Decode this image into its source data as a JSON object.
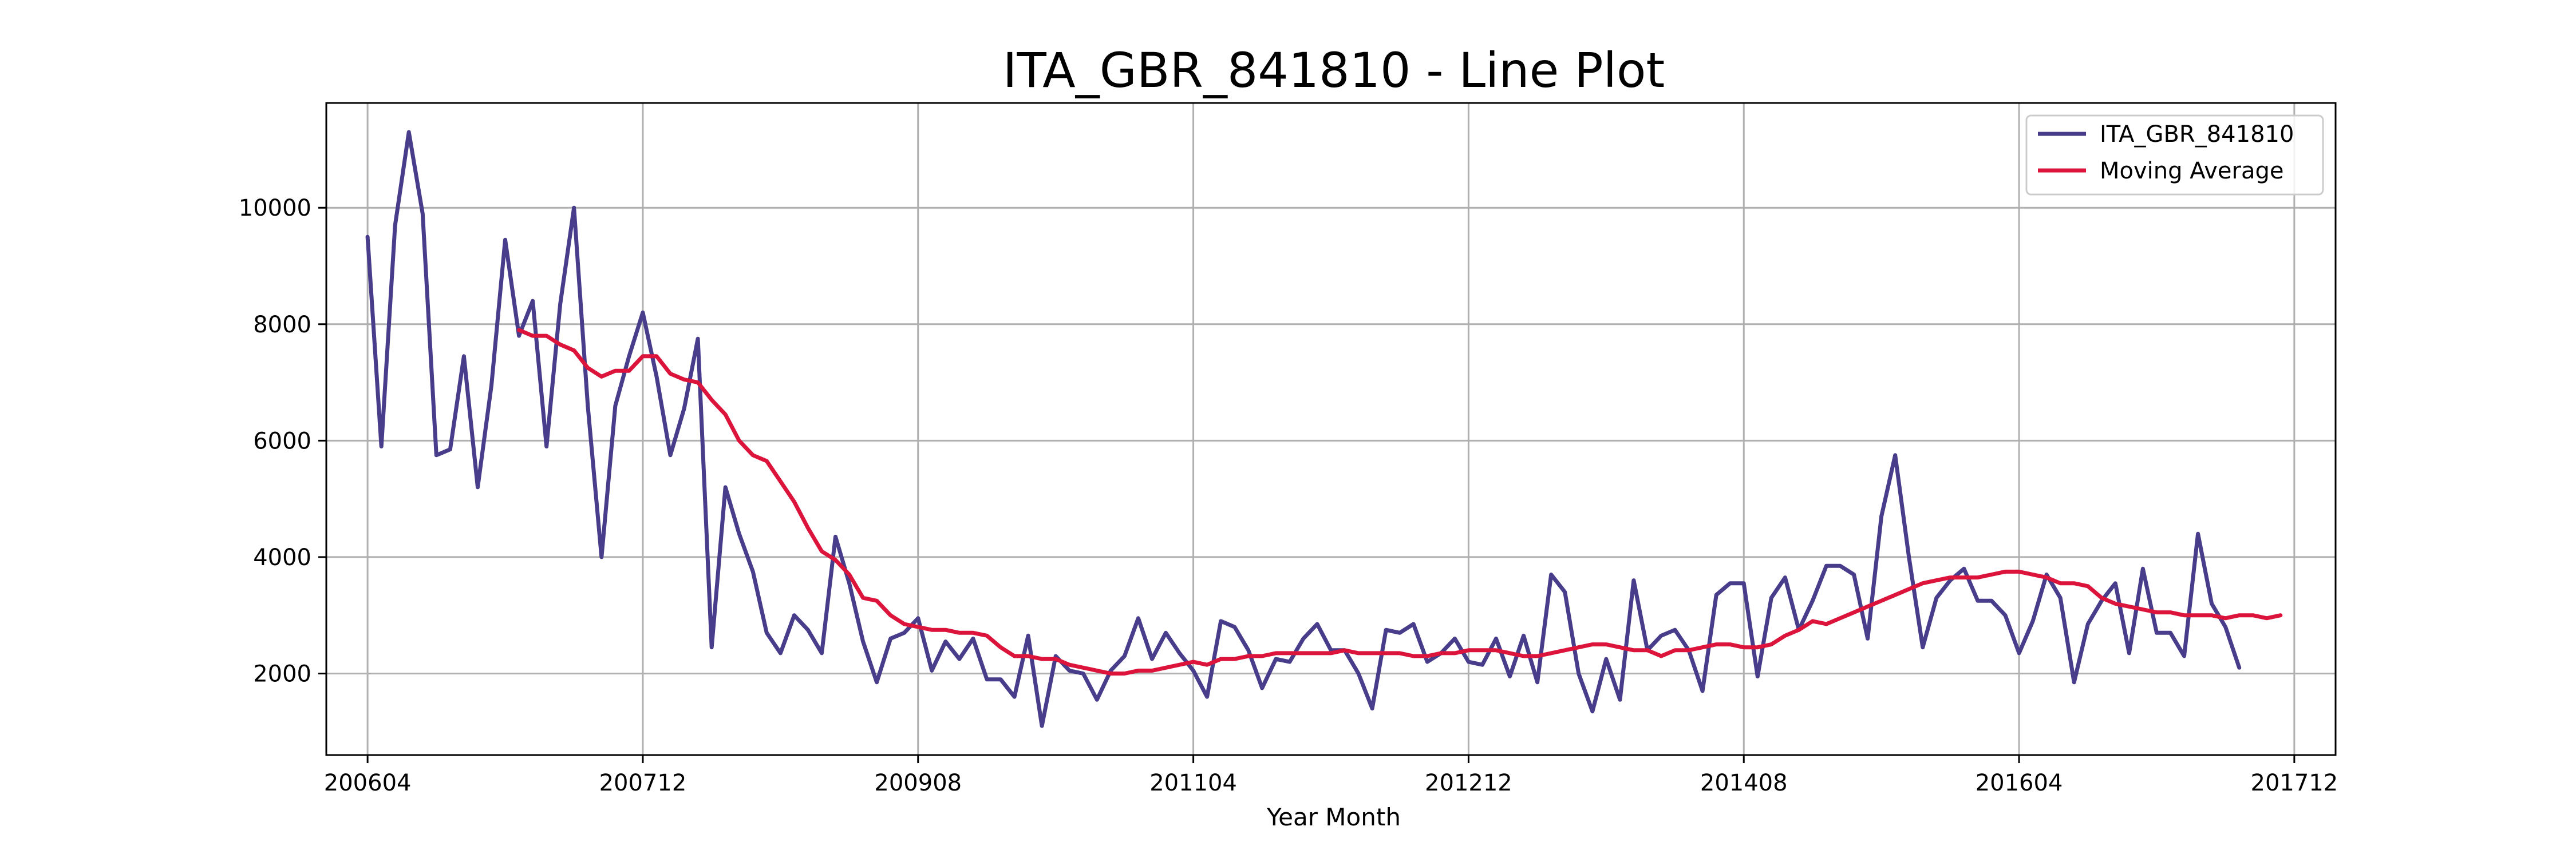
{
  "chart_data": {
    "type": "line",
    "title": "ITA_GBR_841810 - Line Plot",
    "xlabel": "Year Month",
    "ylabel": "",
    "ylim": [
      600,
      11800
    ],
    "xlim": [
      "2006-01",
      "2018-03"
    ],
    "grid": true,
    "legend_position": "top-right",
    "x_ticks": [
      "200604",
      "200712",
      "200908",
      "201104",
      "201212",
      "201408",
      "201604",
      "201712"
    ],
    "y_ticks": [
      2000,
      4000,
      6000,
      8000,
      10000
    ],
    "series": [
      {
        "name": "ITA_GBR_841810",
        "color": "#483D8B",
        "start": "2006-04",
        "values": [
          9500,
          5900,
          9700,
          11300,
          9900,
          5750,
          5850,
          7450,
          5200,
          6950,
          9450,
          7800,
          8400,
          5900,
          8350,
          10000,
          6600,
          4000,
          6600,
          7450,
          8200,
          7100,
          5750,
          6550,
          7750,
          2450,
          5200,
          4400,
          3750,
          2700,
          2350,
          3000,
          2750,
          2350,
          4350,
          3550,
          2550,
          1850,
          2600,
          2700,
          2950,
          2050,
          2550,
          2250,
          2600,
          1900,
          1900,
          1600,
          2650,
          1100,
          2300,
          2050,
          2000,
          1550,
          2050,
          2300,
          2950,
          2250,
          2700,
          2350,
          2050,
          1600,
          2900,
          2800,
          2400,
          1750,
          2250,
          2200,
          2600,
          2850,
          2400,
          2400,
          2000,
          1400,
          2750,
          2700,
          2850,
          2200,
          2350,
          2600,
          2200,
          2150,
          2600,
          1950,
          2650,
          1850,
          3700,
          3400,
          2000,
          1350,
          2250,
          1550,
          3600,
          2400,
          2650,
          2750,
          2400,
          1700,
          3350,
          3550,
          3550,
          1950,
          3300,
          3650,
          2750,
          3250,
          3850,
          3850,
          3700,
          2600,
          4700,
          5750,
          4000,
          2450,
          3300,
          3600,
          3800,
          3250,
          3250,
          3000,
          2350,
          2900,
          3700,
          3300,
          1850,
          2850,
          3250,
          3550,
          2350,
          3800,
          2700,
          2700,
          2300,
          4400,
          3200,
          2800,
          2100
        ]
      },
      {
        "name": "Moving Average",
        "color": "#DC143C",
        "start": "2007-03",
        "values": [
          7900,
          7800,
          7800,
          7650,
          7550,
          7250,
          7100,
          7200,
          7200,
          7450,
          7450,
          7150,
          7050,
          7000,
          6700,
          6450,
          6000,
          5750,
          5650,
          5300,
          4950,
          4500,
          4100,
          3950,
          3700,
          3300,
          3250,
          3000,
          2850,
          2800,
          2750,
          2750,
          2700,
          2700,
          2650,
          2450,
          2300,
          2300,
          2250,
          2250,
          2150,
          2100,
          2050,
          2000,
          2000,
          2050,
          2050,
          2100,
          2150,
          2200,
          2150,
          2250,
          2250,
          2300,
          2300,
          2350,
          2350,
          2350,
          2350,
          2350,
          2400,
          2350,
          2350,
          2350,
          2350,
          2300,
          2300,
          2350,
          2350,
          2400,
          2400,
          2400,
          2350,
          2300,
          2300,
          2350,
          2400,
          2450,
          2500,
          2500,
          2450,
          2400,
          2400,
          2300,
          2400,
          2400,
          2450,
          2500,
          2500,
          2450,
          2450,
          2500,
          2650,
          2750,
          2900,
          2850,
          2950,
          3050,
          3150,
          3250,
          3350,
          3450,
          3550,
          3600,
          3650,
          3650,
          3650,
          3700,
          3750,
          3750,
          3700,
          3650,
          3550,
          3550,
          3500,
          3300,
          3200,
          3150,
          3100,
          3050,
          3050,
          3000,
          3000,
          3000,
          2950,
          3000,
          3000,
          2950,
          3000
        ]
      }
    ]
  }
}
